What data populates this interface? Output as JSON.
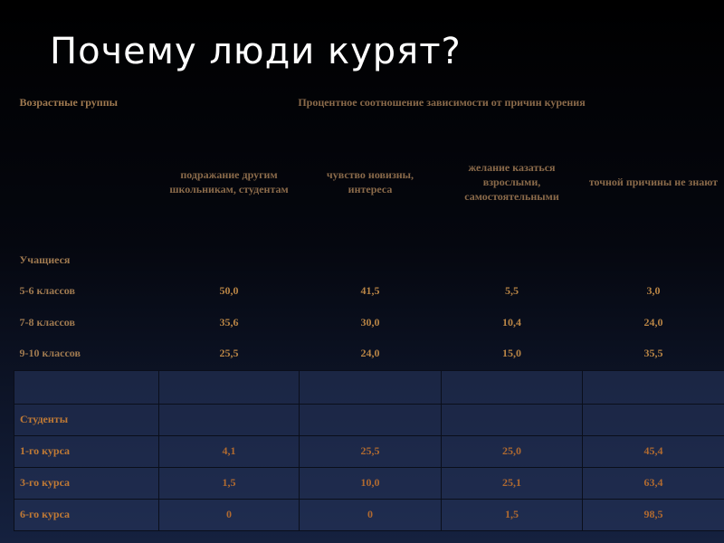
{
  "title": "Почему люди курят?",
  "table": {
    "header": [
      "Возрастные группы",
      "Процентное соотношение зависимости от причин курения"
    ],
    "columns": [
      "подражание другим школьникам, студентам",
      "чувство новизны, интереса",
      "желание казаться взрослыми, самостоятельными",
      "точной причины не знают"
    ],
    "groups": [
      {
        "name": "Учащиеся",
        "rows": [
          {
            "label": "5-6 классов",
            "values": [
              "50,0",
              "41,5",
              "5,5",
              "3,0"
            ]
          },
          {
            "label": "7-8 классов",
            "values": [
              "35,6",
              "30,0",
              "10,4",
              "24,0"
            ]
          },
          {
            "label": "9-10 классов",
            "values": [
              "25,5",
              "24,0",
              "15,0",
              "35,5"
            ]
          }
        ]
      },
      {
        "name": "Студенты",
        "rows": [
          {
            "label": "1-го курса",
            "values": [
              "4,1",
              "25,5",
              "25,0",
              "45,4"
            ]
          },
          {
            "label": "3-го курса",
            "values": [
              "1,5",
              "10,0",
              "25,1",
              "63,4"
            ]
          },
          {
            "label": "6-го курса",
            "values": [
              "0",
              "0",
              "1,5",
              "98,5"
            ]
          }
        ]
      }
    ]
  }
}
